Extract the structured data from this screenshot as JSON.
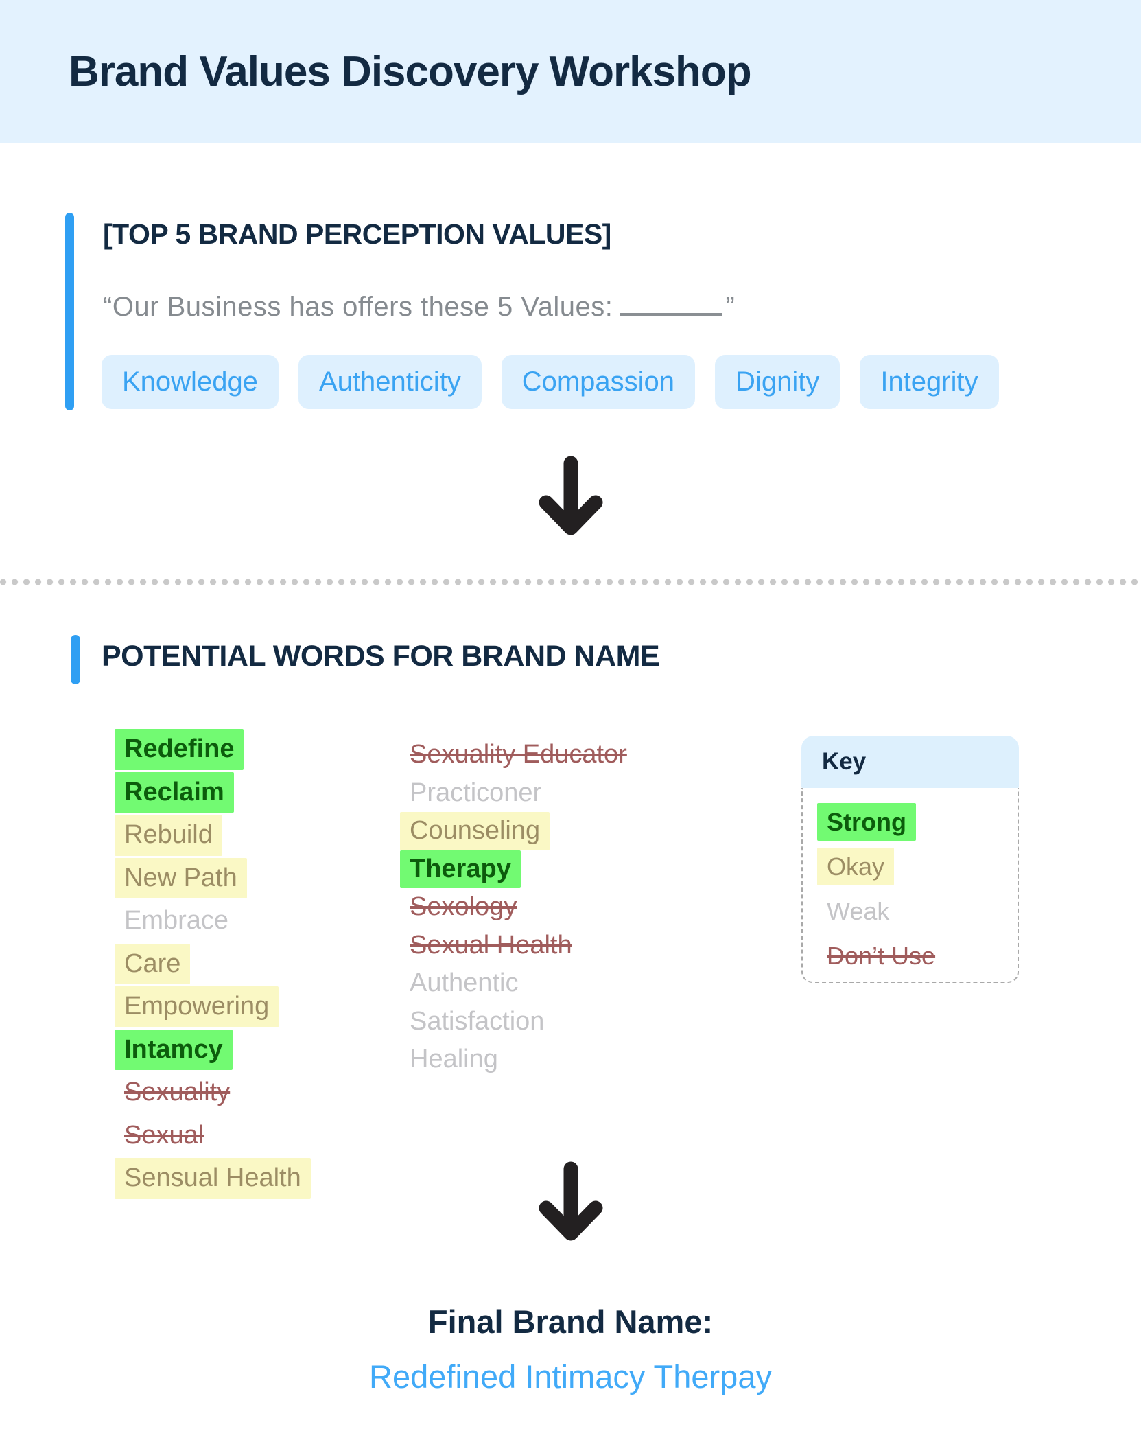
{
  "header": {
    "title": "Brand Values Discovery Workshop"
  },
  "section_values": {
    "heading": "[TOP 5 BRAND PERCEPTION VALUES]",
    "quote_prefix": "“Our Business has offers these 5 Values:",
    "quote_suffix": "”",
    "pills": [
      {
        "label": "Knowledge"
      },
      {
        "label": "Authenticity"
      },
      {
        "label": "Compassion"
      },
      {
        "label": "Dignity"
      },
      {
        "label": "Integrity"
      }
    ]
  },
  "section_words": {
    "heading": "POTENTIAL WORDS FOR BRAND NAME",
    "column1": [
      {
        "label": "Redefine",
        "rating": "strong"
      },
      {
        "label": "Reclaim",
        "rating": "strong"
      },
      {
        "label": "Rebuild",
        "rating": "okay"
      },
      {
        "label": "New Path",
        "rating": "okay"
      },
      {
        "label": "Embrace",
        "rating": "weak"
      },
      {
        "label": "Care",
        "rating": "okay"
      },
      {
        "label": "Empowering",
        "rating": "okay"
      },
      {
        "label": "Intamcy",
        "rating": "strong"
      },
      {
        "label": "Sexuality",
        "rating": "dont"
      },
      {
        "label": "Sexual",
        "rating": "dont"
      },
      {
        "label": "Sensual Health",
        "rating": "okay"
      }
    ],
    "column2": [
      {
        "label": "Sexuality Educator",
        "rating": "dont"
      },
      {
        "label": "Practiconer",
        "rating": "weak"
      },
      {
        "label": "Counseling",
        "rating": "okay"
      },
      {
        "label": "Therapy",
        "rating": "strong"
      },
      {
        "label": "Sexology",
        "rating": "dont"
      },
      {
        "label": "Sexual Health",
        "rating": "dont"
      },
      {
        "label": "Authentic",
        "rating": "weak"
      },
      {
        "label": "Satisfaction",
        "rating": "weak"
      },
      {
        "label": "Healing",
        "rating": "weak"
      }
    ],
    "key": {
      "title": "Key",
      "items": [
        {
          "label": "Strong",
          "rating": "strong"
        },
        {
          "label": "Okay",
          "rating": "okay"
        },
        {
          "label": "Weak",
          "rating": "weak"
        },
        {
          "label": "Don’t Use",
          "rating": "dont"
        }
      ]
    }
  },
  "final": {
    "label": "Final Brand Name:",
    "name": "Redefined Intimacy Therpay"
  },
  "colors": {
    "header_bg": "#e3f2fe",
    "navy": "#132a42",
    "accent": "#2f9ff3",
    "pill_bg": "#def0fe",
    "pill_text": "#3aa3f2",
    "gray_quote": "#868b90",
    "strong_bg": "#72fa72",
    "strong_text": "#0c5c0c",
    "okay_bg": "#faf8c5",
    "okay_text": "#9c8d64",
    "weak_text": "#c4c4c7",
    "dont_text": "#a05c5c",
    "keyheader_bg": "#ddf0fd",
    "final_blue": "#41aaf8",
    "arrow": "#232021"
  }
}
